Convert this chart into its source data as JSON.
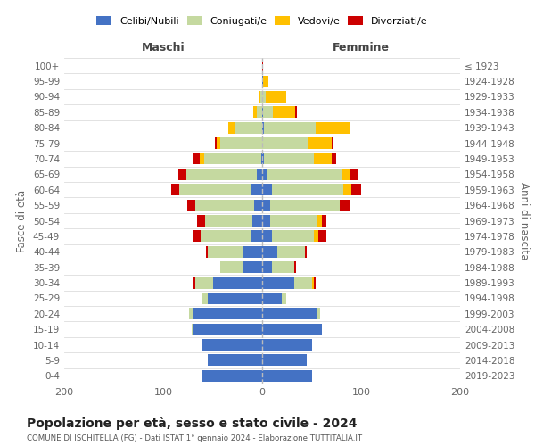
{
  "age_groups": [
    "100+",
    "95-99",
    "90-94",
    "85-89",
    "80-84",
    "75-79",
    "70-74",
    "65-69",
    "60-64",
    "55-59",
    "50-54",
    "45-49",
    "40-44",
    "35-39",
    "30-34",
    "25-29",
    "20-24",
    "15-19",
    "10-14",
    "5-9",
    "0-4"
  ],
  "birth_years": [
    "≤ 1923",
    "1924-1928",
    "1929-1933",
    "1934-1938",
    "1939-1943",
    "1944-1948",
    "1949-1953",
    "1954-1958",
    "1959-1963",
    "1964-1968",
    "1969-1973",
    "1974-1978",
    "1979-1983",
    "1984-1988",
    "1989-1993",
    "1994-1998",
    "1999-2003",
    "2004-2008",
    "2009-2013",
    "2014-2018",
    "2019-2023"
  ],
  "colors": {
    "celibi": "#4472c4",
    "coniugati": "#c5d9a0",
    "vedovi": "#ffc000",
    "divorziati": "#cc0000"
  },
  "maschi": {
    "celibi": [
      0,
      0,
      0,
      0,
      0,
      0,
      1,
      5,
      12,
      8,
      10,
      12,
      20,
      20,
      50,
      55,
      70,
      70,
      60,
      55,
      60
    ],
    "coniugati": [
      0,
      0,
      2,
      5,
      28,
      42,
      58,
      72,
      72,
      60,
      48,
      50,
      35,
      22,
      18,
      5,
      4,
      1,
      0,
      0,
      0
    ],
    "vedovi": [
      0,
      0,
      2,
      4,
      6,
      4,
      4,
      0,
      0,
      0,
      0,
      0,
      0,
      0,
      0,
      0,
      0,
      0,
      0,
      0,
      0
    ],
    "divorziati": [
      0,
      0,
      0,
      0,
      0,
      2,
      6,
      8,
      8,
      8,
      8,
      8,
      2,
      0,
      2,
      0,
      0,
      0,
      0,
      0,
      0
    ]
  },
  "femmine": {
    "celibi": [
      0,
      1,
      0,
      1,
      2,
      0,
      2,
      5,
      10,
      8,
      8,
      10,
      15,
      10,
      32,
      20,
      55,
      60,
      50,
      45,
      50
    ],
    "coniugati": [
      0,
      0,
      4,
      10,
      52,
      46,
      50,
      75,
      72,
      70,
      48,
      42,
      28,
      22,
      18,
      4,
      4,
      0,
      0,
      0,
      0
    ],
    "vedovi": [
      0,
      5,
      20,
      22,
      35,
      24,
      18,
      8,
      8,
      0,
      4,
      5,
      0,
      0,
      2,
      0,
      0,
      0,
      0,
      0,
      0
    ],
    "divorziati": [
      1,
      0,
      0,
      2,
      0,
      2,
      5,
      8,
      10,
      10,
      5,
      8,
      2,
      2,
      2,
      0,
      0,
      0,
      0,
      0,
      0
    ]
  },
  "title": "Popolazione per età, sesso e stato civile - 2024",
  "subtitle": "COMUNE DI ISCHITELLA (FG) - Dati ISTAT 1° gennaio 2024 - Elaborazione TUTTITALIA.IT",
  "header_left": "Maschi",
  "header_right": "Femmine",
  "ylabel_left": "Fasce di età",
  "ylabel_right": "Anni di nascita",
  "xlim": 200,
  "legend_labels": [
    "Celibi/Nubili",
    "Coniugati/e",
    "Vedovi/e",
    "Divorziati/e"
  ],
  "bg_color": "#ffffff",
  "grid_color": "#cccccc"
}
